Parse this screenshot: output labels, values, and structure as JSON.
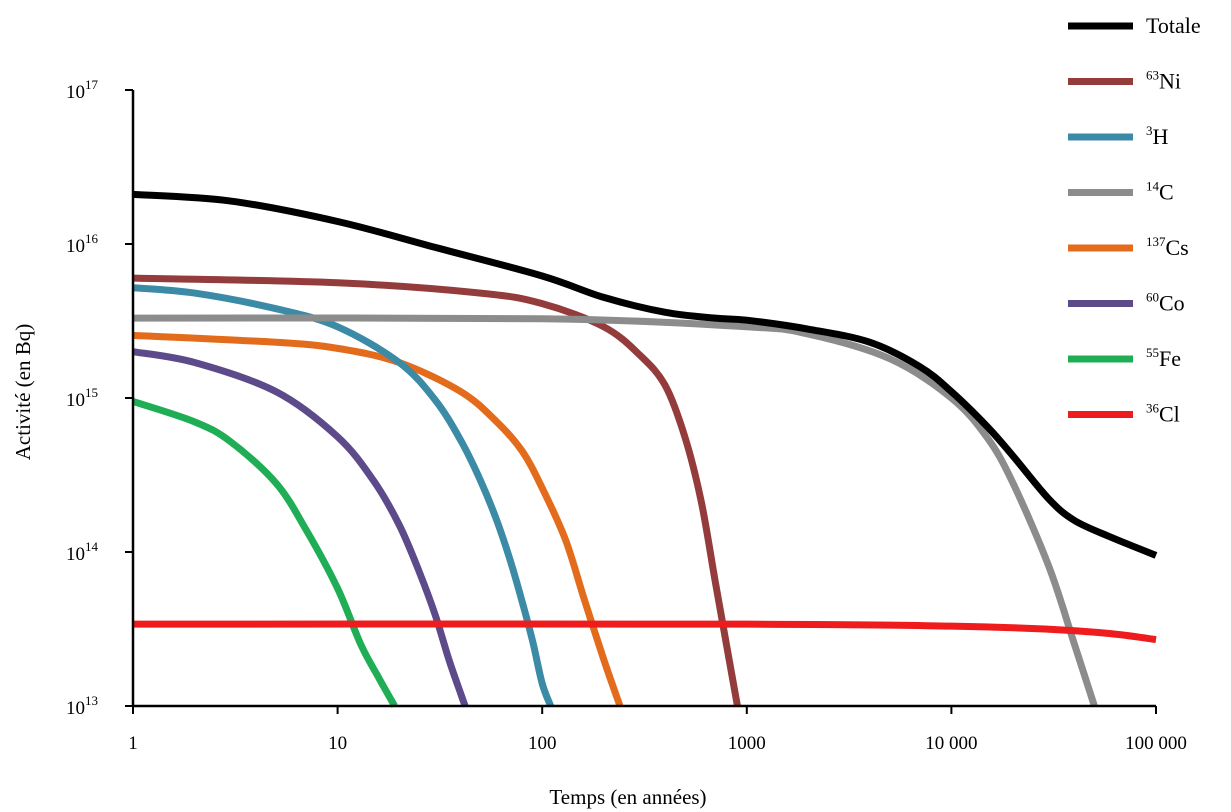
{
  "chart_data": {
    "type": "line",
    "xlabel": "Temps (en années)",
    "ylabel": "Activité (en Bq)",
    "xscale": "log",
    "yscale": "log",
    "xlim": [
      1,
      100000
    ],
    "ylim": [
      10000000000000.0,
      1e+17
    ],
    "grid": false,
    "legend_position": "top-right",
    "x_ticks": [
      {
        "value": 1,
        "label": "1"
      },
      {
        "value": 10,
        "label": "10"
      },
      {
        "value": 100,
        "label": "100"
      },
      {
        "value": 1000,
        "label": "1000"
      },
      {
        "value": 10000,
        "label": "10 000"
      },
      {
        "value": 100000,
        "label": "100 000"
      }
    ],
    "y_ticks": [
      {
        "value": 10000000000000.0,
        "base": "10",
        "exp": "13"
      },
      {
        "value": 100000000000000.0,
        "base": "10",
        "exp": "14"
      },
      {
        "value": 1000000000000000.0,
        "base": "10",
        "exp": "15"
      },
      {
        "value": 1e+16,
        "base": "10",
        "exp": "16"
      },
      {
        "value": 1e+17,
        "base": "10",
        "exp": "17"
      }
    ],
    "series": [
      {
        "name": "Totale",
        "label_mass": "",
        "label_symbol": "Totale",
        "color": "#000000",
        "points": [
          [
            1,
            2.1e+16
          ],
          [
            3,
            1.9e+16
          ],
          [
            10,
            1.4e+16
          ],
          [
            30,
            9500000000000000.0
          ],
          [
            100,
            6200000000000000.0
          ],
          [
            200,
            4500000000000000.0
          ],
          [
            400,
            3600000000000000.0
          ],
          [
            700,
            3300000000000000.0
          ],
          [
            1000,
            3200000000000000.0
          ],
          [
            2000,
            2800000000000000.0
          ],
          [
            4000,
            2300000000000000.0
          ],
          [
            7000,
            1600000000000000.0
          ],
          [
            10000,
            1100000000000000.0
          ],
          [
            15000,
            650000000000000.0
          ],
          [
            20000,
            420000000000000.0
          ],
          [
            30000,
            220000000000000.0
          ],
          [
            40000,
            160000000000000.0
          ],
          [
            60000,
            125000000000000.0
          ],
          [
            100000,
            95000000000000.0
          ]
        ]
      },
      {
        "name": "63Ni",
        "label_mass": "63",
        "label_symbol": "Ni",
        "color": "#943c3c",
        "points": [
          [
            1,
            6000000000000000.0
          ],
          [
            10,
            5600000000000000.0
          ],
          [
            50,
            4800000000000000.0
          ],
          [
            100,
            4100000000000000.0
          ],
          [
            200,
            2900000000000000.0
          ],
          [
            300,
            1900000000000000.0
          ],
          [
            400,
            1200000000000000.0
          ],
          [
            500,
            550000000000000.0
          ],
          [
            600,
            210000000000000.0
          ],
          [
            700,
            65000000000000.0
          ],
          [
            800,
            24000000000000.0
          ],
          [
            900,
            10000000000000.0
          ]
        ]
      },
      {
        "name": "3H",
        "label_mass": "3",
        "label_symbol": "H",
        "color": "#3b8aa6",
        "points": [
          [
            1,
            5200000000000000.0
          ],
          [
            2,
            4800000000000000.0
          ],
          [
            5,
            3800000000000000.0
          ],
          [
            10,
            2900000000000000.0
          ],
          [
            20,
            1700000000000000.0
          ],
          [
            30,
            970000000000000.0
          ],
          [
            40,
            530000000000000.0
          ],
          [
            50,
            290000000000000.0
          ],
          [
            60,
            160000000000000.0
          ],
          [
            70,
            87000000000000.0
          ],
          [
            80,
            47000000000000.0
          ],
          [
            90,
            26000000000000.0
          ],
          [
            100,
            14000000000000.0
          ],
          [
            110,
            10000000000000.0
          ]
        ]
      },
      {
        "name": "14C",
        "label_mass": "14",
        "label_symbol": "C",
        "color": "#8c8c8c",
        "points": [
          [
            1,
            3300000000000000.0
          ],
          [
            100,
            3270000000000000.0
          ],
          [
            1000,
            2900000000000000.0
          ],
          [
            2000,
            2600000000000000.0
          ],
          [
            5000,
            1800000000000000.0
          ],
          [
            10000,
            1000000000000000.0
          ],
          [
            15000,
            550000000000000.0
          ],
          [
            20000,
            280000000000000.0
          ],
          [
            30000,
            80000000000000.0
          ],
          [
            40000,
            25000000000000.0
          ],
          [
            50000,
            10000000000000.0
          ]
        ]
      },
      {
        "name": "137Cs",
        "label_mass": "137",
        "label_symbol": "Cs",
        "color": "#e36c1c",
        "points": [
          [
            1,
            2550000000000000.0
          ],
          [
            5,
            2300000000000000.0
          ],
          [
            10,
            2100000000000000.0
          ],
          [
            20,
            1700000000000000.0
          ],
          [
            40,
            1100000000000000.0
          ],
          [
            60,
            700000000000000.0
          ],
          [
            80,
            450000000000000.0
          ],
          [
            100,
            260000000000000.0
          ],
          [
            130,
            120000000000000.0
          ],
          [
            160,
            50000000000000.0
          ],
          [
            200,
            20000000000000.0
          ],
          [
            240,
            10000000000000.0
          ]
        ]
      },
      {
        "name": "60Co",
        "label_mass": "60",
        "label_symbol": "Co",
        "color": "#5c4a8a",
        "points": [
          [
            1,
            2000000000000000.0
          ],
          [
            2,
            1700000000000000.0
          ],
          [
            5,
            1100000000000000.0
          ],
          [
            10,
            560000000000000.0
          ],
          [
            15,
            290000000000000.0
          ],
          [
            20,
            150000000000000.0
          ],
          [
            25,
            75000000000000.0
          ],
          [
            30,
            39000000000000.0
          ],
          [
            35,
            20000000000000.0
          ],
          [
            40,
            12000000000000.0
          ],
          [
            42,
            10000000000000.0
          ]
        ]
      },
      {
        "name": "55Fe",
        "label_mass": "55",
        "label_symbol": "Fe",
        "color": "#1fae55",
        "points": [
          [
            1,
            950000000000000.0
          ],
          [
            2,
            700000000000000.0
          ],
          [
            3,
            520000000000000.0
          ],
          [
            5,
            280000000000000.0
          ],
          [
            7,
            140000000000000.0
          ],
          [
            10,
            58000000000000.0
          ],
          [
            13,
            25000000000000.0
          ],
          [
            16,
            15000000000000.0
          ],
          [
            19,
            10000000000000.0
          ]
        ]
      },
      {
        "name": "36Cl",
        "label_mass": "36",
        "label_symbol": "Cl",
        "color": "#ee1c1c",
        "points": [
          [
            1,
            34000000000000.0
          ],
          [
            1000,
            34000000000000.0
          ],
          [
            10000,
            33000000000000.0
          ],
          [
            30000,
            31500000000000.0
          ],
          [
            60000,
            29500000000000.0
          ],
          [
            100000,
            27000000000000.0
          ]
        ]
      }
    ]
  }
}
